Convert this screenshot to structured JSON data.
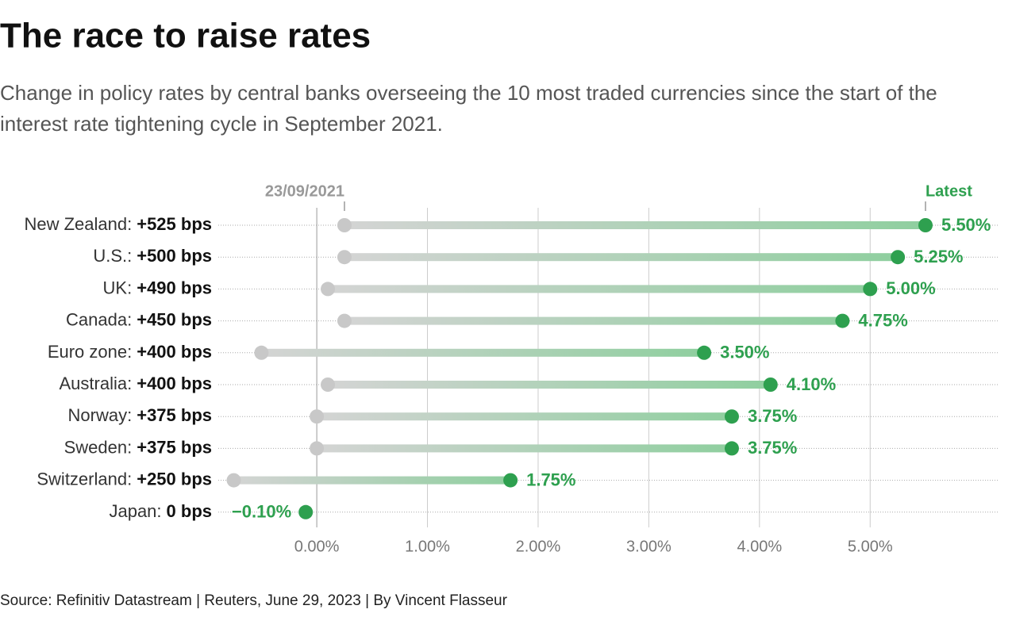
{
  "chart_data": {
    "type": "dumbbell",
    "title": "The race to raise rates",
    "subtitle": [
      "Change in policy rates by central banks overseeing the 10 most traded currencies since the start of the",
      "interest rate tightening cycle in September 2021."
    ],
    "source": "Source: Refinitiv Datastream | Reuters, June 29, 2023 | By Vincent Flasseur",
    "categories": [
      "New Zealand:",
      "U.S.:",
      "UK:",
      "Canada:",
      "Euro zone:",
      "Australia:",
      "Norway:",
      "Sweden:",
      "Switzerland:",
      "Japan:"
    ],
    "changes": [
      "+525 bps",
      "+500 bps",
      "+490 bps",
      "+450 bps",
      "+400 bps",
      "+400 bps",
      "+375 bps",
      "+375 bps",
      "+250 bps",
      "0 bps"
    ],
    "series": [
      {
        "name": "23/09/2021",
        "color": "#c8c8c8",
        "values": [
          0.25,
          0.25,
          0.1,
          0.25,
          -0.5,
          0.1,
          0,
          0,
          -0.75,
          -0.1
        ]
      },
      {
        "name": "Latest",
        "color": "#2ea04f",
        "values": [
          5.5,
          5.25,
          5.0,
          4.75,
          3.5,
          4.1,
          3.75,
          3.75,
          1.75,
          -0.1
        ],
        "value_labels": [
          "5.50%",
          "5.25%",
          "5.00%",
          "4.75%",
          "3.50%",
          "4.10%",
          "3.75%",
          "3.75%",
          "1.75%",
          "−0.10%"
        ]
      }
    ],
    "xlim": [
      -0.89,
      6.16
    ],
    "xticks": [
      {
        "value": 0,
        "label": "0.00%"
      },
      {
        "value": 1,
        "label": "1.00%"
      },
      {
        "value": 2,
        "label": "2.00%"
      },
      {
        "value": 3,
        "label": "3.00%"
      },
      {
        "value": 4,
        "label": "4.00%"
      },
      {
        "value": 5,
        "label": "5.00%"
      }
    ],
    "grid": true
  }
}
